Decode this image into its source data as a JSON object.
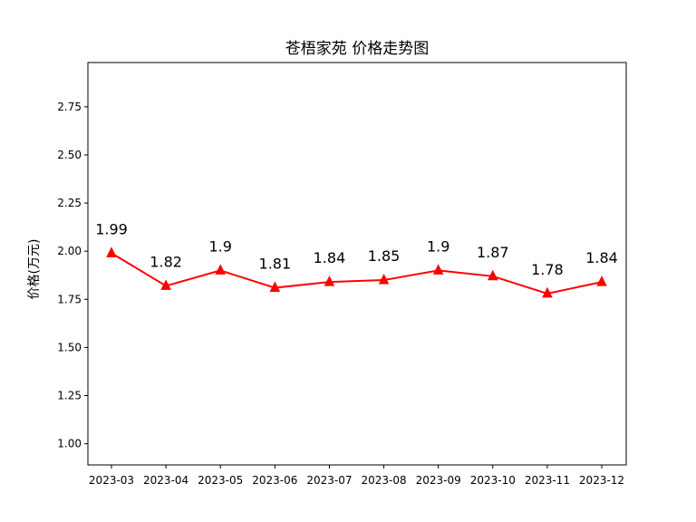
{
  "chart_data": {
    "type": "line",
    "title": "苍梧家苑 价格走势图",
    "xlabel": "",
    "ylabel": "价格(万元)",
    "categories": [
      "2023-03",
      "2023-04",
      "2023-05",
      "2023-06",
      "2023-07",
      "2023-08",
      "2023-09",
      "2023-10",
      "2023-11",
      "2023-12"
    ],
    "series": [
      {
        "values": [
          1.99,
          1.82,
          1.9,
          1.81,
          1.84,
          1.85,
          1.9,
          1.87,
          1.78,
          1.84
        ],
        "labels": [
          "1.99",
          "1.82",
          "1.9",
          "1.81",
          "1.84",
          "1.85",
          "1.9",
          "1.87",
          "1.78",
          "1.84"
        ],
        "color": "#ff0000",
        "marker": "triangle-up"
      }
    ],
    "yticks": [
      "1.00",
      "1.25",
      "1.50",
      "1.75",
      "2.00",
      "2.25",
      "2.50",
      "2.75"
    ],
    "ylim": [
      0.89,
      2.98
    ],
    "grid": false,
    "legend": "none"
  }
}
